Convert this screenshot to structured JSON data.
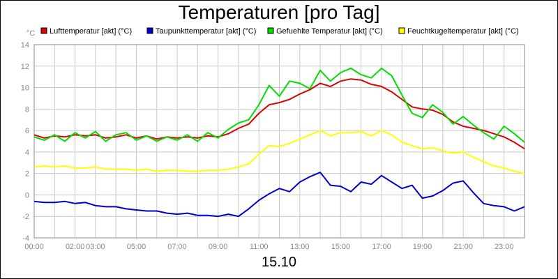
{
  "chart_data": {
    "type": "line",
    "title": "Temperaturen [pro Tag]",
    "footer": "15.10",
    "ylabel": "°C",
    "xlabel": "",
    "ylim": [
      -4,
      14
    ],
    "xlim": [
      0,
      24
    ],
    "grid": true,
    "legend_position": "top",
    "yticks": [
      "-4",
      "-2",
      "0",
      "2",
      "4",
      "6",
      "8",
      "10",
      "12",
      "14"
    ],
    "xticks": [
      {
        "h": 0,
        "label": "00:00"
      },
      {
        "h": 2,
        "label": "02:00"
      },
      {
        "h": 3,
        "label": "03:00"
      },
      {
        "h": 5,
        "label": "05:00"
      },
      {
        "h": 7,
        "label": "07:00"
      },
      {
        "h": 9,
        "label": "09:00"
      },
      {
        "h": 11,
        "label": "11:00"
      },
      {
        "h": 13,
        "label": "13:00"
      },
      {
        "h": 15,
        "label": "15:00"
      },
      {
        "h": 17,
        "label": "17:00"
      },
      {
        "h": 19,
        "label": "19:00"
      },
      {
        "h": 21,
        "label": "21:00"
      },
      {
        "h": 23,
        "label": "23:00"
      }
    ],
    "series": [
      {
        "name": "Lufttemperatur [akt] (°C)",
        "color": "#dd0000",
        "x": [
          0,
          0.5,
          1,
          1.5,
          2,
          2.5,
          3,
          3.5,
          4,
          4.5,
          5,
          5.5,
          6,
          6.5,
          7,
          7.5,
          8,
          8.5,
          9,
          9.5,
          10,
          10.5,
          11,
          11.5,
          12,
          12.5,
          13,
          13.5,
          14,
          14.5,
          15,
          15.5,
          16,
          16.5,
          17,
          17.5,
          18,
          18.5,
          19,
          19.5,
          20,
          20.5,
          21,
          21.5,
          22,
          22.5,
          23,
          23.5,
          24
        ],
        "values": [
          5.6,
          5.3,
          5.5,
          5.4,
          5.6,
          5.5,
          5.6,
          5.3,
          5.4,
          5.6,
          5.3,
          5.5,
          5.2,
          5.4,
          5.3,
          5.4,
          5.3,
          5.5,
          5.4,
          5.7,
          6.2,
          6.6,
          7.6,
          8.4,
          8.6,
          8.9,
          9.4,
          9.8,
          10.4,
          10.1,
          10.6,
          10.8,
          10.7,
          10.3,
          10.1,
          9.6,
          8.9,
          8.2,
          8.0,
          7.9,
          7.5,
          6.8,
          6.4,
          6.2,
          6.0,
          5.7,
          5.4,
          4.9,
          4.3
        ]
      },
      {
        "name": "Taupunkttemperatur [akt] (°C)",
        "color": "#0000cc",
        "x": [
          0,
          0.5,
          1,
          1.5,
          2,
          2.5,
          3,
          3.5,
          4,
          4.5,
          5,
          5.5,
          6,
          6.5,
          7,
          7.5,
          8,
          8.5,
          9,
          9.5,
          10,
          10.5,
          11,
          11.5,
          12,
          12.5,
          13,
          13.5,
          14,
          14.5,
          15,
          15.5,
          16,
          16.5,
          17,
          17.5,
          18,
          18.5,
          19,
          19.5,
          20,
          20.5,
          21,
          21.5,
          22,
          22.5,
          23,
          23.5,
          24
        ],
        "values": [
          -0.6,
          -0.7,
          -0.7,
          -0.6,
          -0.8,
          -0.7,
          -1.0,
          -1.1,
          -1.1,
          -1.3,
          -1.4,
          -1.5,
          -1.5,
          -1.7,
          -1.8,
          -1.7,
          -1.9,
          -1.9,
          -2.0,
          -1.8,
          -2.0,
          -1.3,
          -0.5,
          0.1,
          0.6,
          0.3,
          1.2,
          1.7,
          2.1,
          0.9,
          0.8,
          0.3,
          1.2,
          1.0,
          1.8,
          1.2,
          0.6,
          0.9,
          -0.3,
          -0.1,
          0.4,
          1.1,
          1.3,
          0.2,
          -0.8,
          -1.0,
          -1.1,
          -1.5,
          -1.1
        ]
      },
      {
        "name": "Gefuehlte Temperatur [akt] (°C)",
        "color": "#00dd00",
        "x": [
          0,
          0.5,
          1,
          1.5,
          2,
          2.5,
          3,
          3.5,
          4,
          4.5,
          5,
          5.5,
          6,
          6.5,
          7,
          7.5,
          8,
          8.5,
          9,
          9.5,
          10,
          10.5,
          11,
          11.5,
          12,
          12.5,
          13,
          13.5,
          14,
          14.5,
          15,
          15.5,
          16,
          16.5,
          17,
          17.5,
          18,
          18.5,
          19,
          19.5,
          20,
          20.5,
          21,
          21.5,
          22,
          22.5,
          23,
          23.5,
          24
        ],
        "values": [
          5.4,
          5.1,
          5.6,
          5.0,
          5.8,
          5.3,
          5.9,
          5.0,
          5.6,
          5.8,
          5.1,
          5.5,
          5.0,
          5.4,
          5.1,
          5.6,
          5.0,
          5.8,
          5.3,
          6.1,
          6.7,
          7.0,
          8.4,
          10.2,
          9.2,
          10.6,
          10.4,
          9.9,
          11.6,
          10.6,
          11.4,
          11.8,
          11.2,
          10.9,
          11.8,
          11.1,
          9.3,
          7.6,
          7.2,
          8.4,
          7.7,
          6.6,
          7.3,
          6.5,
          5.8,
          5.2,
          6.4,
          5.7,
          4.9
        ]
      },
      {
        "name": "Feuchtkugeltemperatur [akt] (°C)",
        "color": "#ffff00",
        "x": [
          0,
          0.5,
          1,
          1.5,
          2,
          2.5,
          3,
          3.5,
          4,
          4.5,
          5,
          5.5,
          6,
          6.5,
          7,
          7.5,
          8,
          8.5,
          9,
          9.5,
          10,
          10.5,
          11,
          11.5,
          12,
          12.5,
          13,
          13.5,
          14,
          14.5,
          15,
          15.5,
          16,
          16.5,
          17,
          17.5,
          18,
          18.5,
          19,
          19.5,
          20,
          20.5,
          21,
          21.5,
          22,
          22.5,
          23,
          23.5,
          24
        ],
        "values": [
          2.6,
          2.7,
          2.6,
          2.7,
          2.5,
          2.5,
          2.6,
          2.4,
          2.4,
          2.4,
          2.3,
          2.4,
          2.2,
          2.3,
          2.3,
          2.2,
          2.2,
          2.3,
          2.3,
          2.4,
          2.6,
          2.9,
          3.8,
          4.6,
          4.5,
          4.8,
          5.2,
          5.6,
          6.0,
          5.5,
          5.8,
          5.8,
          5.9,
          5.5,
          6.0,
          5.6,
          4.9,
          4.6,
          4.3,
          4.4,
          4.1,
          3.9,
          4.0,
          3.5,
          3.1,
          2.7,
          2.5,
          2.2,
          2.0
        ]
      }
    ]
  }
}
